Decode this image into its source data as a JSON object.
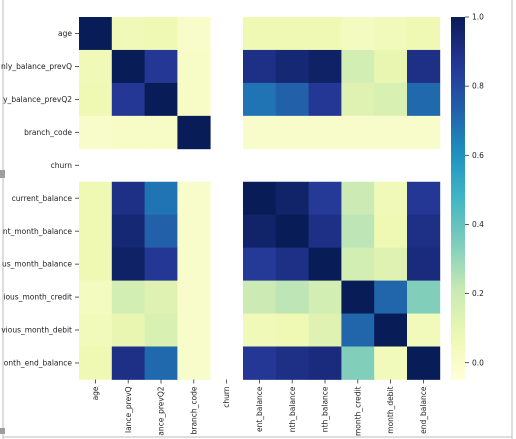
{
  "chart_data": {
    "type": "heatmap",
    "title": "",
    "xlabel": "",
    "ylabel": "",
    "row_labels": [
      "age",
      "nly_balance_prevQ",
      "y_balance_prevQ2",
      "branch_code",
      "churn",
      "current_balance",
      "nt_month_balance",
      "us_month_balance",
      "ious_month_credit",
      "vious_month_debit",
      "onth_end_balance"
    ],
    "col_labels": [
      "age",
      "lance_prevQ",
      "ance_prevQ2",
      "branch_code",
      "churn",
      "ent_balance",
      "nth_balance",
      "nth_balance",
      "month_credit",
      "month_debit",
      "end_balance"
    ],
    "values": [
      [
        1.0,
        0.06,
        0.07,
        0.0,
        null,
        0.07,
        0.07,
        0.07,
        0.03,
        0.05,
        0.07
      ],
      [
        0.06,
        1.0,
        0.86,
        0.01,
        null,
        0.9,
        0.94,
        0.97,
        0.17,
        0.1,
        0.9
      ],
      [
        0.07,
        0.86,
        1.0,
        0.01,
        null,
        0.68,
        0.73,
        0.86,
        0.13,
        0.15,
        0.71
      ],
      [
        0.0,
        0.01,
        0.01,
        1.0,
        null,
        0.0,
        0.0,
        0.0,
        0.0,
        0.0,
        0.0
      ],
      [
        null,
        null,
        null,
        null,
        null,
        null,
        null,
        null,
        null,
        null,
        null
      ],
      [
        0.07,
        0.9,
        0.68,
        0.0,
        null,
        1.0,
        0.96,
        0.85,
        0.2,
        0.06,
        0.86
      ],
      [
        0.07,
        0.94,
        0.73,
        0.0,
        null,
        0.96,
        1.0,
        0.9,
        0.23,
        0.07,
        0.9
      ],
      [
        0.07,
        0.97,
        0.86,
        0.0,
        null,
        0.85,
        0.9,
        1.0,
        0.17,
        0.13,
        0.92
      ],
      [
        0.03,
        0.17,
        0.13,
        0.0,
        null,
        0.2,
        0.23,
        0.17,
        1.0,
        0.72,
        0.34
      ],
      [
        0.05,
        0.1,
        0.15,
        0.0,
        null,
        0.06,
        0.07,
        0.13,
        0.72,
        1.0,
        0.05
      ],
      [
        0.07,
        0.9,
        0.71,
        0.0,
        null,
        0.86,
        0.9,
        0.92,
        0.34,
        0.05,
        1.0
      ]
    ],
    "colorbar": {
      "colormap": "YlGnBu",
      "range": [
        -0.05,
        1.0
      ],
      "ticks": [
        "1.0",
        "0.8",
        "0.6",
        "0.4",
        "0.2",
        "0.0"
      ],
      "tick_values": [
        1.0,
        0.8,
        0.6,
        0.4,
        0.2,
        0.0
      ]
    },
    "grid": false,
    "legend": "right"
  }
}
